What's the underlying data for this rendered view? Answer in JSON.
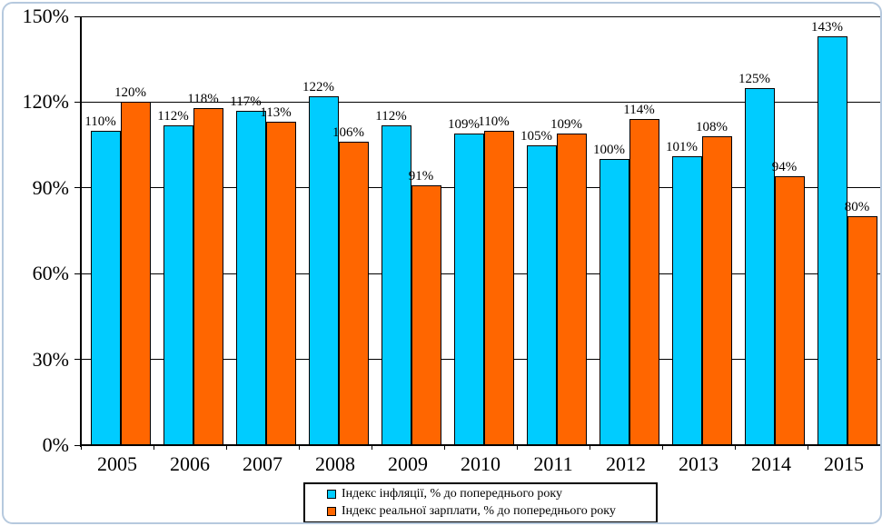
{
  "chart_data": {
    "type": "bar",
    "title": "",
    "categories": [
      "2005",
      "2006",
      "2007",
      "2008",
      "2009",
      "2010",
      "2011",
      "2012",
      "2013",
      "2014",
      "2015"
    ],
    "series": [
      {
        "key": "inflation",
        "name": "Індекс інфляції, % до попереднього року",
        "color": "#00ccff",
        "values": [
          110,
          112,
          117,
          122,
          112,
          109,
          105,
          100,
          101,
          125,
          143
        ]
      },
      {
        "key": "real-wage",
        "name": "Індекс реальної зарплати, % до попереднього року",
        "color": "#ff6600",
        "values": [
          120,
          118,
          113,
          106,
          91,
          110,
          109,
          114,
          108,
          94,
          80
        ]
      }
    ],
    "y_axis": {
      "min": 0,
      "max": 150,
      "step": 30,
      "tick_labels": [
        "0%",
        "30%",
        "60%",
        "90%",
        "120%",
        "150%"
      ]
    },
    "data_label_suffix": "%",
    "grid": true,
    "legend_position": "bottom",
    "xlabel": "",
    "ylabel": ""
  },
  "style": {
    "bar_border_color": "#000000",
    "gridline_color": "#000000",
    "frame_border_color": "#b6c9de",
    "background_color": "#ffffff"
  }
}
